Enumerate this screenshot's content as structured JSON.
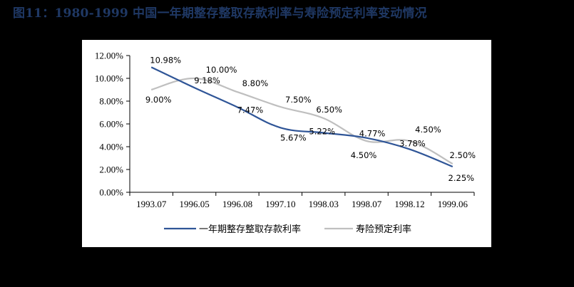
{
  "title": "图11：1980-1999 中国一年期整存整取存款利率与寿险预定利率变动情况",
  "colors": {
    "series1": "#2f5597",
    "series2": "#bfbfbf",
    "title": "#1f3864",
    "background": "#000000",
    "panel": "#ffffff"
  },
  "chart_data": {
    "type": "line",
    "title": "图11：1980-1999 中国一年期整存整取存款利率与寿险预定利率变动情况",
    "xlabel": "",
    "ylabel": "",
    "categories": [
      "1993.07",
      "1996.05",
      "1996.08",
      "1997.10",
      "1998.03",
      "1998.07",
      "1998.12",
      "1999.06"
    ],
    "series": [
      {
        "name": "一年期整存整取存款利率",
        "values": [
          10.98,
          9.18,
          7.47,
          5.67,
          5.22,
          4.77,
          3.78,
          2.25
        ],
        "labels": [
          "10.98%",
          "9.18%",
          "7.47%",
          "5.67%",
          "5.22%",
          "4.77%",
          "3.78%",
          "2.25%"
        ],
        "color": "#2f5597"
      },
      {
        "name": "寿险预定利率",
        "values": [
          9.0,
          10.0,
          8.8,
          7.5,
          6.5,
          4.5,
          4.5,
          2.5
        ],
        "labels": [
          "9.00%",
          "10.00%",
          "8.80%",
          "7.50%",
          "6.50%",
          "4.50%",
          "4.50%",
          "2.50%"
        ],
        "color": "#bfbfbf"
      }
    ],
    "yticks": [
      "0.00%",
      "2.00%",
      "4.00%",
      "6.00%",
      "8.00%",
      "10.00%",
      "12.00%"
    ],
    "ylim": [
      0,
      12
    ],
    "grid": false,
    "legend_position": "bottom",
    "smooth": true
  },
  "legend": {
    "item1": "一年期整存整取存款利率",
    "item2": "寿险预定利率"
  }
}
